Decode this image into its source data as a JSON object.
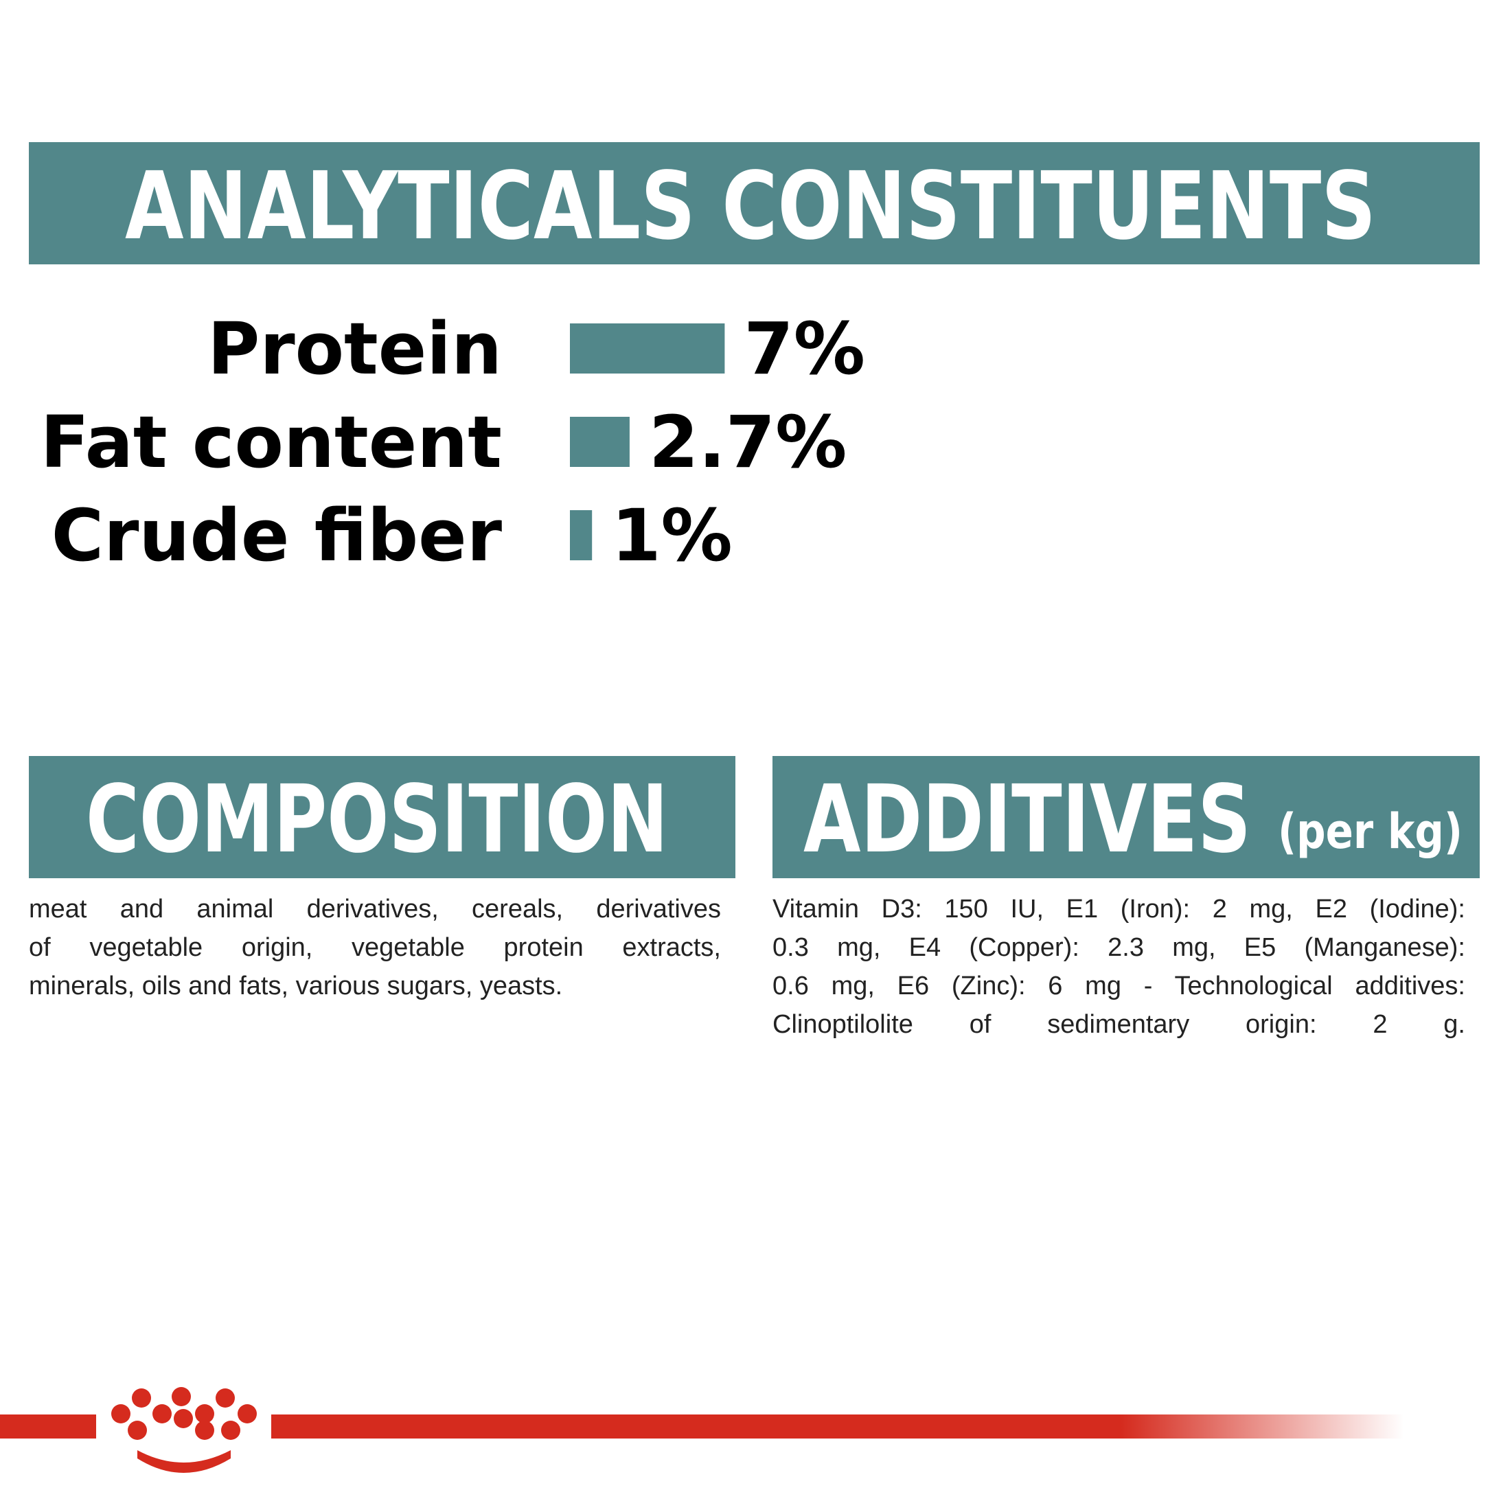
{
  "analyticals": {
    "title": "ANALYTICALS CONSTITUENTS",
    "color": "#52878a",
    "rows": [
      {
        "label": "Protein",
        "value": 7,
        "value_label": "7%"
      },
      {
        "label": "Fat content",
        "value": 2.7,
        "value_label": "2.7%"
      },
      {
        "label": "Crude fiber",
        "value": 1,
        "value_label": "1%"
      }
    ]
  },
  "composition": {
    "title": "COMPOSITION",
    "lines": [
      "meat and animal derivatives, cereals, derivatives",
      "of vegetable origin, vegetable protein extracts,",
      "minerals, oils and fats, various sugars, yeasts."
    ]
  },
  "additives": {
    "title": "ADDITIVES",
    "subtitle": "(per kg)",
    "lines": [
      "Vitamin D3: 150 IU, E1 (Iron): 2 mg, E2 (Iodine):",
      "0.3 mg, E4 (Copper): 2.3 mg, E5 (Manganese):",
      "0.6 mg, E6 (Zinc): 6 mg - Technological additives:",
      "Clinoptilolite of sedimentary origin: 2 g."
    ]
  }
}
